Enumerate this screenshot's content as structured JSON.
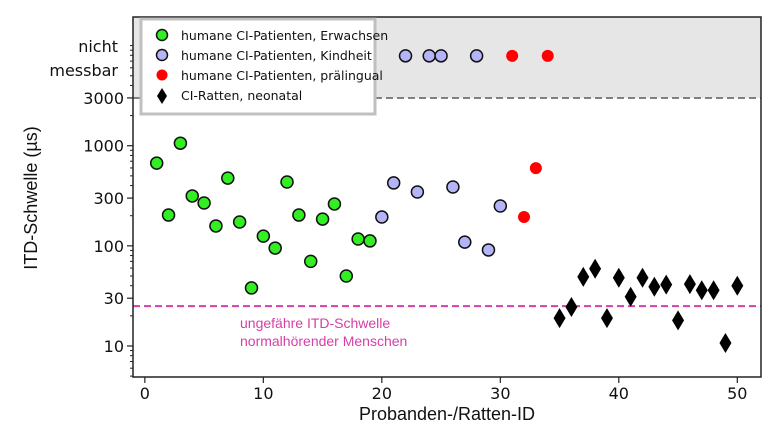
{
  "chart_data": {
    "type": "scatter",
    "title": "",
    "xlabel": "Probanden-/Ratten-ID",
    "ylabel": "ITD-Schwelle (µs)",
    "xlim": [
      -1,
      52
    ],
    "ylim": [
      4.9,
      19300
    ],
    "yscale": "log",
    "xticks": [
      0,
      10,
      20,
      30,
      40,
      50
    ],
    "xtick_labels": [
      "0",
      "10",
      "20",
      "30",
      "40",
      "50"
    ],
    "yticks": [
      10,
      30,
      100,
      300,
      1000,
      3000
    ],
    "ytick_labels": [
      "10",
      "30",
      "100",
      "300",
      "1000",
      "3000"
    ],
    "not_measurable": {
      "label_line1": "nicht",
      "label_line2": "messbar",
      "threshold": 3000,
      "plot_value": 7900,
      "region_color": "#e6e6e6",
      "line_color": "#808080"
    },
    "reference_line": {
      "value": 25,
      "color": "#d63fa6",
      "label_line1": "ungefähre ITD-Schwelle",
      "label_line2": "normalhörender Menschen"
    },
    "grid": false,
    "legend_position": "top-left",
    "series": [
      {
        "name": "humane CI-Patienten, Erwachsen",
        "marker": "circle",
        "color": "#33ee22",
        "edge": "#111111",
        "points": [
          {
            "x": 1,
            "y": 670
          },
          {
            "x": 2,
            "y": 203
          },
          {
            "x": 3,
            "y": 1060
          },
          {
            "x": 4,
            "y": 315
          },
          {
            "x": 5,
            "y": 268
          },
          {
            "x": 6,
            "y": 158
          },
          {
            "x": 7,
            "y": 475
          },
          {
            "x": 8,
            "y": 173
          },
          {
            "x": 9,
            "y": 38
          },
          {
            "x": 10,
            "y": 125
          },
          {
            "x": 11,
            "y": 95
          },
          {
            "x": 12,
            "y": 434
          },
          {
            "x": 13,
            "y": 203
          },
          {
            "x": 14,
            "y": 70
          },
          {
            "x": 15,
            "y": 185
          },
          {
            "x": 16,
            "y": 262
          },
          {
            "x": 17,
            "y": 50
          },
          {
            "x": 18,
            "y": 117
          },
          {
            "x": 19,
            "y": 112
          }
        ]
      },
      {
        "name": "humane CI-Patienten, Kindheit",
        "marker": "circle",
        "color": "#b4b4f8",
        "edge": "#111111",
        "points": [
          {
            "x": 20,
            "y": 194
          },
          {
            "x": 21,
            "y": 425
          },
          {
            "x": 22,
            "y": "nicht messbar"
          },
          {
            "x": 23,
            "y": 345
          },
          {
            "x": 24,
            "y": "nicht messbar"
          },
          {
            "x": 25,
            "y": "nicht messbar"
          },
          {
            "x": 26,
            "y": 387
          },
          {
            "x": 27,
            "y": 109
          },
          {
            "x": 28,
            "y": "nicht messbar"
          },
          {
            "x": 29,
            "y": 91
          },
          {
            "x": 30,
            "y": 250
          }
        ]
      },
      {
        "name": "humane CI-Patienten, prälingual",
        "marker": "circle",
        "color": "#ff0000",
        "edge": "none",
        "points": [
          {
            "x": 31,
            "y": "nicht messbar"
          },
          {
            "x": 32,
            "y": 194
          },
          {
            "x": 33,
            "y": 598
          },
          {
            "x": 34,
            "y": "nicht messbar"
          }
        ]
      },
      {
        "name": "CI-Ratten, neonatal",
        "marker": "diamond",
        "color": "#000000",
        "edge": "none",
        "points": [
          {
            "x": 35,
            "y": 19
          },
          {
            "x": 36,
            "y": 24.5
          },
          {
            "x": 37,
            "y": 49
          },
          {
            "x": 38,
            "y": 59
          },
          {
            "x": 39,
            "y": 19
          },
          {
            "x": 40,
            "y": 48
          },
          {
            "x": 41,
            "y": 31
          },
          {
            "x": 42,
            "y": 48
          },
          {
            "x": 43,
            "y": 39
          },
          {
            "x": 44,
            "y": 41
          },
          {
            "x": 45,
            "y": 18
          },
          {
            "x": 46,
            "y": 41.5
          },
          {
            "x": 47,
            "y": 36
          },
          {
            "x": 48,
            "y": 36
          },
          {
            "x": 49,
            "y": 10.7
          },
          {
            "x": 50,
            "y": 40
          }
        ]
      }
    ]
  }
}
